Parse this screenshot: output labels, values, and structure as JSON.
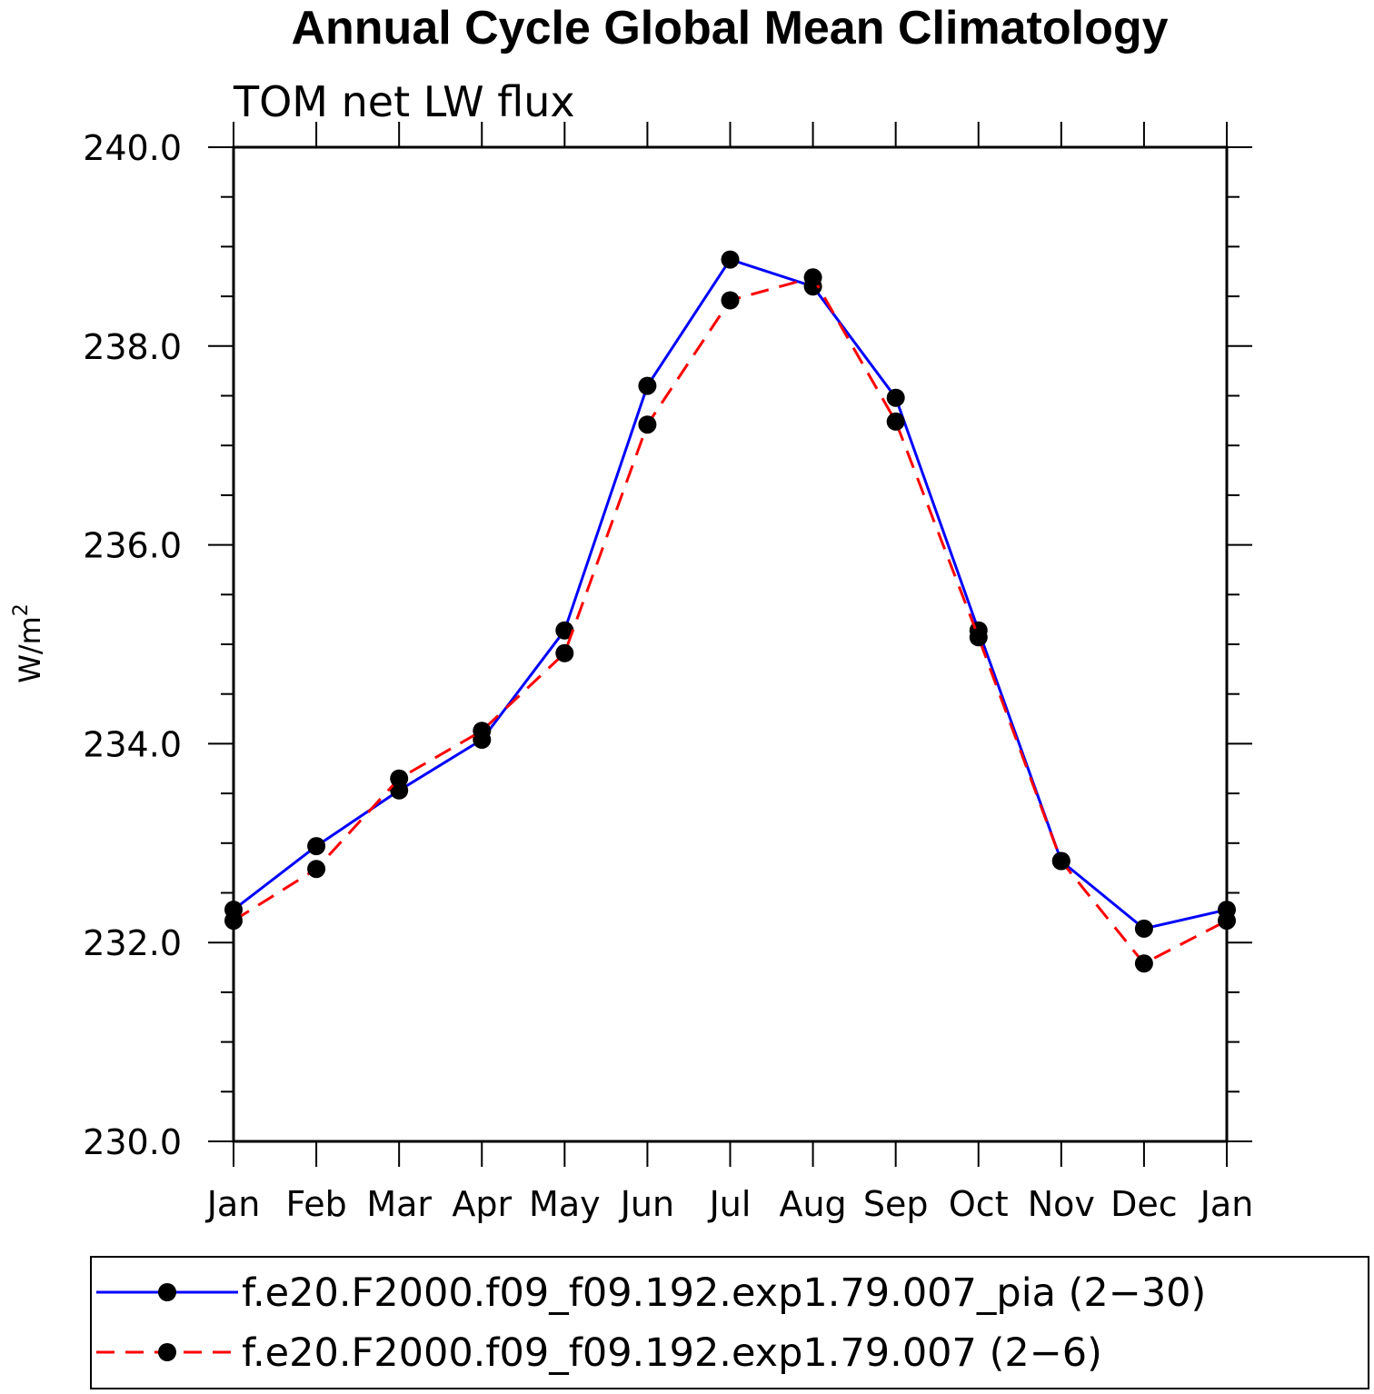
{
  "chart_data": {
    "type": "line",
    "title": "Annual Cycle Global Mean Climatology",
    "subtitle": "TOM net LW flux",
    "ylabel": "W/m",
    "ylabel_sup": "2",
    "xlabel": "",
    "categories": [
      "Jan",
      "Feb",
      "Mar",
      "Apr",
      "May",
      "Jun",
      "Jul",
      "Aug",
      "Sep",
      "Oct",
      "Nov",
      "Dec",
      "Jan"
    ],
    "ylim": [
      230.0,
      240.0
    ],
    "yticks": [
      "230.0",
      "232.0",
      "234.0",
      "236.0",
      "238.0",
      "240.0"
    ],
    "grid": false,
    "legend_position": "bottom",
    "series": [
      {
        "name": "f.e20.F2000.f09_f09.192.exp1.79.007_pia (2−30)",
        "color": "#0000ff",
        "style": "solid",
        "marker": "circle",
        "values": [
          232.33,
          232.97,
          233.53,
          234.04,
          235.14,
          237.6,
          238.87,
          238.6,
          237.48,
          235.14,
          232.82,
          232.14,
          232.33
        ]
      },
      {
        "name": "f.e20.F2000.f09_f09.192.exp1.79.007 (2−6)",
        "color": "#ff0000",
        "style": "dashed",
        "marker": "circle",
        "values": [
          232.22,
          232.74,
          233.65,
          234.13,
          234.91,
          237.21,
          238.46,
          238.69,
          237.24,
          235.07,
          232.82,
          231.79,
          232.22
        ]
      }
    ]
  }
}
